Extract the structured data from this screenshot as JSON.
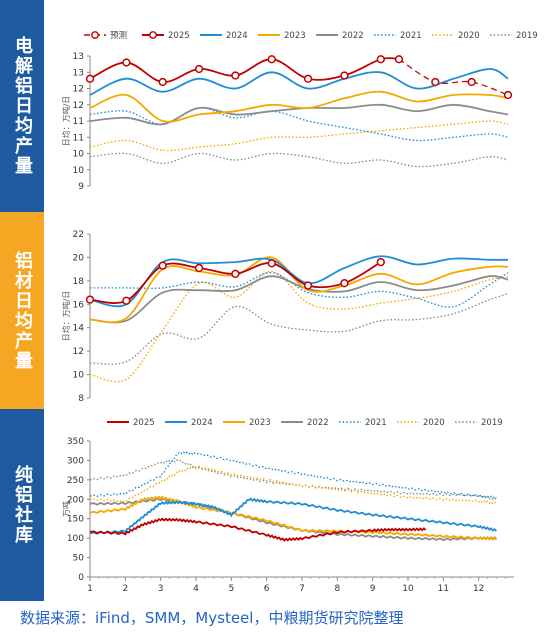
{
  "panels": [
    {
      "title": "电解铝日均产量"
    },
    {
      "title": "铝材日均产量"
    },
    {
      "title": "纯铝社库"
    }
  ],
  "source_text": "数据来源：iFind，SMM，Mysteel，中粮期货研究院整理",
  "chart_data": [
    {
      "type": "line",
      "panel_title": "电解铝日均产量",
      "ylabel": "日均：万吨/日",
      "ylim": [
        9,
        13
      ],
      "yticks": [
        "9",
        "10",
        "10",
        "11",
        "11",
        "12",
        "12",
        "13",
        "13"
      ],
      "ytick_values": [
        9,
        9.5,
        10,
        10.5,
        11,
        11.5,
        12,
        12.5,
        13
      ],
      "xlim": [
        1,
        12.5
      ],
      "legend": [
        {
          "name": "预测",
          "color": "#c00000",
          "style": "dashed-marker"
        },
        {
          "name": "2025",
          "color": "#c00000",
          "style": "solid-marker"
        },
        {
          "name": "2024",
          "color": "#1f8dd6",
          "style": "solid"
        },
        {
          "name": "2023",
          "color": "#f5a800",
          "style": "solid"
        },
        {
          "name": "2022",
          "color": "#8c8c8c",
          "style": "solid"
        },
        {
          "name": "2021",
          "color": "#1f8dd6",
          "style": "dotted"
        },
        {
          "name": "2020",
          "color": "#f5a800",
          "style": "dotted"
        },
        {
          "name": "2019",
          "color": "#8c8c8c",
          "style": "dotted"
        }
      ],
      "series": [
        {
          "name": "预测",
          "color": "#c00000",
          "style": "dashed",
          "marker": true,
          "x": [
            9.5,
            10.5,
            11.5,
            12.5
          ],
          "values": [
            12.9,
            12.2,
            12.2,
            11.8
          ]
        },
        {
          "name": "2025",
          "color": "#c00000",
          "style": "solid",
          "marker": true,
          "x": [
            1,
            2,
            3,
            4,
            5,
            6,
            7,
            8,
            9,
            9.5
          ],
          "values": [
            12.3,
            12.8,
            12.2,
            12.6,
            12.4,
            12.9,
            12.3,
            12.4,
            12.9,
            12.9
          ]
        },
        {
          "name": "2024",
          "color": "#1f8dd6",
          "style": "solid",
          "x": [
            1,
            2,
            3,
            4,
            5,
            6,
            7,
            8,
            9,
            10,
            11,
            12,
            12.5
          ],
          "values": [
            11.8,
            12.3,
            11.9,
            12.3,
            12.0,
            12.5,
            12.0,
            12.3,
            12.5,
            12.0,
            12.3,
            12.6,
            12.3
          ]
        },
        {
          "name": "2023",
          "color": "#f5a800",
          "style": "solid",
          "x": [
            1,
            2,
            3,
            4,
            5,
            6,
            7,
            8,
            9,
            10,
            11,
            12,
            12.5
          ],
          "values": [
            11.4,
            11.8,
            11.0,
            11.2,
            11.3,
            11.5,
            11.4,
            11.7,
            11.9,
            11.6,
            11.8,
            11.8,
            11.7
          ]
        },
        {
          "name": "2022",
          "color": "#8c8c8c",
          "style": "solid",
          "x": [
            1,
            2,
            3,
            4,
            5,
            6,
            7,
            8,
            9,
            10,
            11,
            12,
            12.5
          ],
          "values": [
            11.0,
            11.1,
            10.9,
            11.4,
            11.2,
            11.3,
            11.4,
            11.4,
            11.5,
            11.3,
            11.5,
            11.3,
            11.2
          ]
        },
        {
          "name": "2021",
          "color": "#1f8dd6",
          "style": "dotted",
          "x": [
            1,
            2,
            3,
            4,
            5,
            6,
            7,
            8,
            9,
            10,
            11,
            12,
            12.5
          ],
          "values": [
            11.2,
            11.3,
            10.9,
            11.4,
            11.1,
            11.3,
            11.0,
            10.8,
            10.6,
            10.4,
            10.5,
            10.6,
            10.5
          ]
        },
        {
          "name": "2020",
          "color": "#f5a800",
          "style": "dotted",
          "x": [
            1,
            2,
            3,
            4,
            5,
            6,
            7,
            8,
            9,
            10,
            11,
            12,
            12.5
          ],
          "values": [
            10.2,
            10.4,
            10.1,
            10.2,
            10.3,
            10.5,
            10.5,
            10.6,
            10.7,
            10.8,
            10.9,
            11.0,
            10.9
          ]
        },
        {
          "name": "2019",
          "color": "#8c8c8c",
          "style": "dotted",
          "x": [
            1,
            2,
            3,
            4,
            5,
            6,
            7,
            8,
            9,
            10,
            11,
            12,
            12.5
          ],
          "values": [
            9.9,
            10.0,
            9.7,
            10.0,
            9.8,
            10.0,
            9.9,
            9.7,
            9.8,
            9.6,
            9.7,
            9.9,
            9.8
          ]
        }
      ]
    },
    {
      "type": "line",
      "panel_title": "铝材日均产量",
      "ylabel": "日均：万吨/日",
      "ylim": [
        8,
        22
      ],
      "yticks": [
        "8",
        "10",
        "12",
        "14",
        "16",
        "18",
        "20",
        "22"
      ],
      "ytick_values": [
        8,
        10,
        12,
        14,
        16,
        18,
        20,
        22
      ],
      "xlim": [
        1,
        12.5
      ],
      "series": [
        {
          "name": "2025",
          "color": "#c00000",
          "style": "solid",
          "marker": true,
          "x": [
            1,
            2,
            3,
            4,
            5,
            6,
            7,
            8,
            9
          ],
          "values": [
            16.4,
            16.3,
            19.3,
            19.1,
            18.6,
            19.5,
            17.6,
            17.8,
            19.6
          ]
        },
        {
          "name": "2024",
          "color": "#1f8dd6",
          "style": "solid",
          "x": [
            1,
            2,
            3,
            4,
            5,
            6,
            7,
            8,
            9,
            10,
            11,
            12,
            12.5
          ],
          "values": [
            16.4,
            16.0,
            19.6,
            19.5,
            19.6,
            19.8,
            17.8,
            19.1,
            20.1,
            19.4,
            19.9,
            19.8,
            19.8
          ]
        },
        {
          "name": "2023",
          "color": "#f5a800",
          "style": "solid",
          "x": [
            1,
            2,
            3,
            4,
            5,
            6,
            7,
            8,
            9,
            10,
            11,
            12,
            12.5
          ],
          "values": [
            14.7,
            14.8,
            19.0,
            18.8,
            18.5,
            20.0,
            17.2,
            17.6,
            18.6,
            17.7,
            18.7,
            19.2,
            19.2
          ]
        },
        {
          "name": "2022",
          "color": "#8c8c8c",
          "style": "solid",
          "x": [
            1,
            2,
            3,
            4,
            5,
            6,
            7,
            8,
            9,
            10,
            11,
            12,
            12.5
          ],
          "values": [
            14.7,
            14.6,
            17.0,
            17.2,
            17.2,
            18.4,
            17.3,
            17.1,
            17.9,
            17.2,
            17.6,
            18.4,
            18.1
          ]
        },
        {
          "name": "2021",
          "color": "#1f8dd6",
          "style": "dotted",
          "x": [
            1,
            2,
            3,
            4,
            5,
            6,
            7,
            8,
            9,
            10,
            11,
            12,
            12.5
          ],
          "values": [
            17.4,
            17.4,
            17.4,
            17.9,
            17.5,
            18.7,
            17.0,
            16.6,
            17.1,
            16.5,
            15.8,
            17.7,
            18.7
          ]
        },
        {
          "name": "2020",
          "color": "#f5a800",
          "style": "dotted",
          "x": [
            1,
            2,
            3,
            4,
            5,
            6,
            7,
            8,
            9,
            10,
            11,
            12,
            12.5
          ],
          "values": [
            10.0,
            9.6,
            13.8,
            17.8,
            16.6,
            18.8,
            16.1,
            15.6,
            16.1,
            16.5,
            17.1,
            18.1,
            18.3
          ]
        },
        {
          "name": "2019",
          "color": "#8c8c8c",
          "style": "dotted",
          "x": [
            1,
            2,
            3,
            4,
            5,
            6,
            7,
            8,
            9,
            10,
            11,
            12,
            12.5
          ],
          "values": [
            11.0,
            11.1,
            13.5,
            13.1,
            15.8,
            14.3,
            13.8,
            13.7,
            14.6,
            14.7,
            15.2,
            16.4,
            16.9
          ]
        }
      ]
    },
    {
      "type": "line",
      "panel_title": "纯铝社库",
      "ylabel": "万吨",
      "ylim": [
        0,
        350
      ],
      "yticks": [
        "0",
        "50",
        "100",
        "150",
        "200",
        "250",
        "300",
        "350"
      ],
      "ytick_values": [
        0,
        50,
        100,
        150,
        200,
        250,
        300,
        350
      ],
      "xlim": [
        1,
        13
      ],
      "xticks": [
        "1",
        "2",
        "3",
        "4",
        "5",
        "6",
        "7",
        "8",
        "9",
        "10",
        "11",
        "12"
      ],
      "xtick_values": [
        1,
        2,
        3,
        4,
        5,
        6,
        7,
        8,
        9,
        10,
        11,
        12
      ],
      "legend": [
        {
          "name": "2025",
          "color": "#c00000",
          "style": "solid"
        },
        {
          "name": "2024",
          "color": "#1f8dd6",
          "style": "solid"
        },
        {
          "name": "2023",
          "color": "#f5a800",
          "style": "solid"
        },
        {
          "name": "2022",
          "color": "#8c8c8c",
          "style": "solid"
        },
        {
          "name": "2021",
          "color": "#1f8dd6",
          "style": "dotted"
        },
        {
          "name": "2020",
          "color": "#f5a800",
          "style": "dotted"
        },
        {
          "name": "2019",
          "color": "#8c8c8c",
          "style": "dotted"
        }
      ],
      "series": [
        {
          "name": "2025",
          "color": "#c00000",
          "style": "solid",
          "x": [
            1,
            2,
            2.5,
            3,
            3.5,
            4,
            5,
            6,
            6.5,
            7,
            8,
            9,
            9.5,
            10,
            10.5
          ],
          "values": [
            116,
            112,
            135,
            148,
            147,
            142,
            130,
            108,
            96,
            99,
            115,
            120,
            122,
            122,
            123
          ]
        },
        {
          "name": "2024",
          "color": "#1f8dd6",
          "style": "solid",
          "x": [
            1,
            2,
            2.5,
            3,
            3.5,
            4,
            4.5,
            5,
            5.5,
            6,
            7,
            8,
            9,
            10,
            11,
            12,
            12.5
          ],
          "values": [
            112,
            118,
            155,
            190,
            192,
            188,
            180,
            160,
            200,
            194,
            188,
            172,
            160,
            150,
            140,
            130,
            120
          ]
        },
        {
          "name": "2023",
          "color": "#f5a800",
          "style": "solid",
          "x": [
            1,
            2,
            2.5,
            3,
            3.5,
            4,
            5,
            6,
            7,
            8,
            9,
            10,
            11,
            12,
            12.5
          ],
          "values": [
            165,
            175,
            200,
            205,
            195,
            180,
            165,
            145,
            120,
            118,
            115,
            110,
            105,
            100,
            98
          ]
        },
        {
          "name": "2022",
          "color": "#8c8c8c",
          "style": "solid",
          "x": [
            1,
            2,
            3,
            4,
            5,
            6,
            7,
            8,
            9,
            10,
            11,
            12,
            12.5
          ],
          "values": [
            188,
            190,
            200,
            188,
            165,
            140,
            120,
            110,
            105,
            100,
            97,
            100,
            100
          ]
        },
        {
          "name": "2021",
          "color": "#1f8dd6",
          "style": "dotted",
          "x": [
            1,
            2,
            3,
            3.5,
            4,
            5,
            6,
            7,
            8,
            9,
            10,
            11,
            12,
            12.5
          ],
          "values": [
            208,
            215,
            260,
            320,
            318,
            300,
            280,
            265,
            250,
            240,
            228,
            218,
            208,
            205
          ]
        },
        {
          "name": "2020",
          "color": "#f5a800",
          "style": "dotted",
          "x": [
            1,
            2,
            3,
            3.5,
            4,
            5,
            6,
            7,
            8,
            9,
            10,
            11,
            12,
            12.5
          ],
          "values": [
            200,
            195,
            245,
            270,
            285,
            265,
            250,
            235,
            225,
            215,
            205,
            200,
            195,
            190
          ]
        },
        {
          "name": "2019",
          "color": "#8c8c8c",
          "style": "dotted",
          "x": [
            1,
            2,
            3,
            3.5,
            4,
            5,
            6,
            7,
            8,
            9,
            10,
            11,
            12,
            12.5
          ],
          "values": [
            250,
            262,
            295,
            300,
            282,
            260,
            245,
            235,
            228,
            222,
            215,
            212,
            210,
            200
          ]
        }
      ]
    }
  ]
}
